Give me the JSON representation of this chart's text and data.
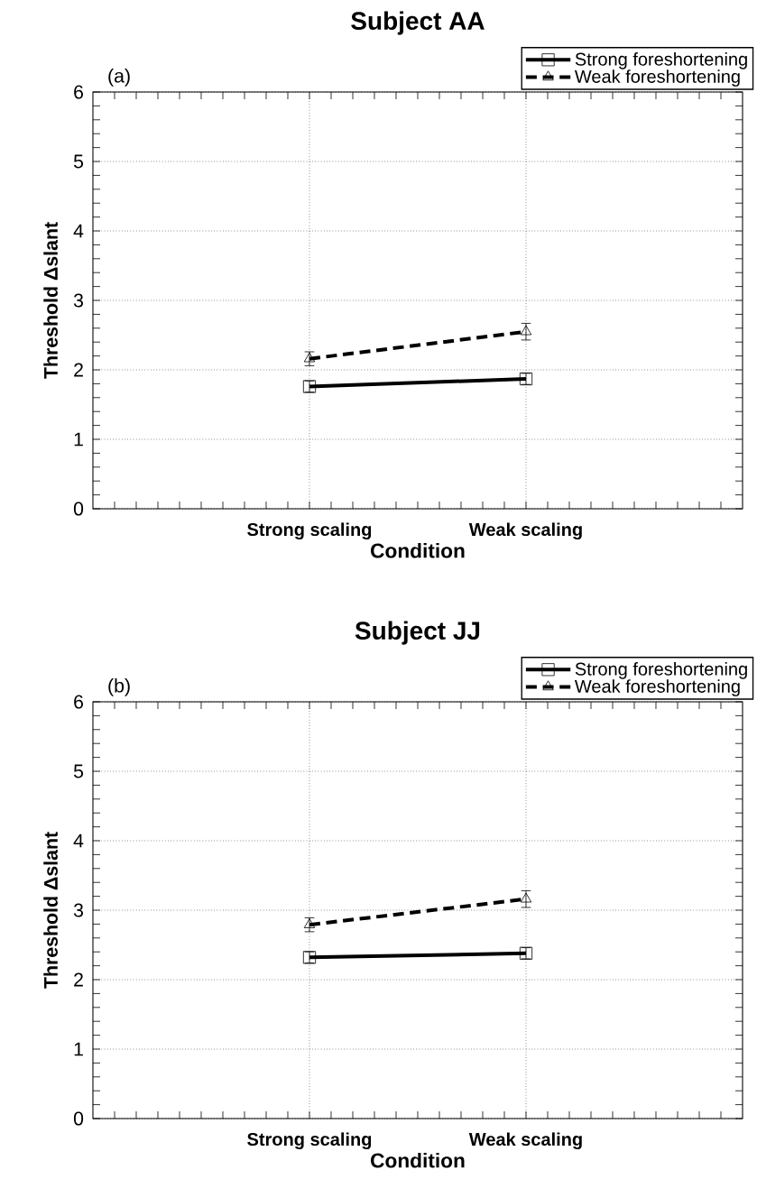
{
  "chart_data": [
    {
      "type": "line",
      "title": "Subject AA",
      "xlabel": "Condition",
      "ylabel": "Threshold Δslant",
      "annotations": [
        "(a)"
      ],
      "categories": [
        "Strong scaling",
        "Weak scaling"
      ],
      "series": [
        {
          "name": "Strong foreshortening",
          "color": "#000000",
          "marker": "square",
          "line_style": "solid",
          "values": [
            1.76,
            1.87
          ],
          "errors": [
            0.08,
            0.08
          ]
        },
        {
          "name": "Weak foreshortening",
          "color": "#000000",
          "marker": "triangle",
          "line_style": "dashed",
          "values": [
            2.16,
            2.55
          ],
          "errors": [
            0.1,
            0.12
          ]
        }
      ],
      "ylim": [
        0,
        6
      ],
      "yticks": [
        0,
        1,
        2,
        3,
        4,
        5,
        6
      ],
      "grid": true,
      "legend": "top right"
    },
    {
      "type": "line",
      "title": "Subject JJ",
      "xlabel": "Condition",
      "ylabel": "Threshold Δslant",
      "annotations": [
        "(b)"
      ],
      "categories": [
        "Strong scaling",
        "Weak scaling"
      ],
      "series": [
        {
          "name": "Strong foreshortening",
          "color": "#000000",
          "marker": "square",
          "line_style": "solid",
          "values": [
            2.32,
            2.38
          ],
          "errors": [
            0.08,
            0.08
          ]
        },
        {
          "name": "Weak foreshortening",
          "color": "#000000",
          "marker": "triangle",
          "line_style": "dashed",
          "values": [
            2.79,
            3.16
          ],
          "errors": [
            0.1,
            0.12
          ]
        }
      ],
      "ylim": [
        0,
        6
      ],
      "yticks": [
        0,
        1,
        2,
        3,
        4,
        5,
        6
      ],
      "grid": true,
      "legend": "top right"
    }
  ]
}
